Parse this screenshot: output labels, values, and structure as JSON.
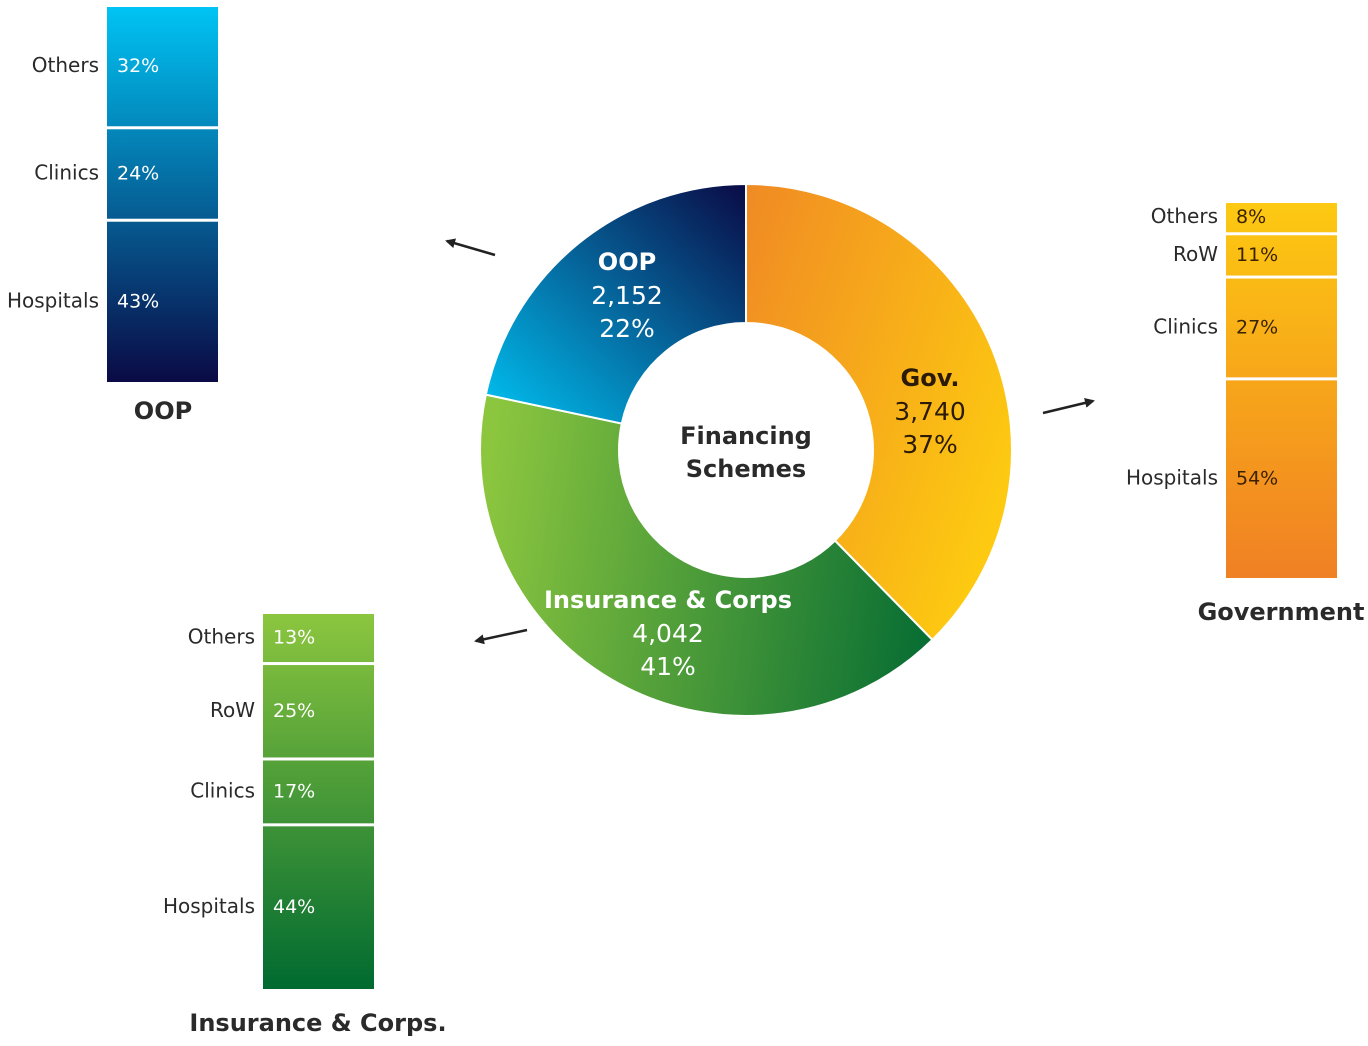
{
  "chart_data": [
    {
      "type": "pie",
      "donut": true,
      "center_label": [
        "Financing",
        "Schemes"
      ],
      "slices": [
        {
          "label": "Gov.",
          "value": 3740,
          "value_label": "3,740",
          "percent": "37%",
          "colors": [
            "#f08a24",
            "#fdc911"
          ]
        },
        {
          "label": "Insurance & Corps",
          "value": 4042,
          "value_label": "4,042",
          "percent": "41%",
          "colors": [
            "#8cc63f",
            "#0a6f33"
          ]
        },
        {
          "label": "OOP",
          "value": 2152,
          "value_label": "2,152",
          "percent": "22%",
          "colors": [
            "#00c4f4",
            "#0a0a45"
          ]
        }
      ]
    },
    {
      "type": "bar",
      "stacked": true,
      "title": "OOP",
      "categories": [
        "Others",
        "Clinics",
        "Hospitals"
      ],
      "values": [
        32,
        24,
        43
      ],
      "value_labels": [
        "32%",
        "24%",
        "43%"
      ],
      "colors": [
        "#00c4f4",
        "#0a0a45"
      ]
    },
    {
      "type": "bar",
      "stacked": true,
      "title": "Government",
      "categories": [
        "Others",
        "RoW",
        "Clinics",
        "Hospitals"
      ],
      "values": [
        8,
        11,
        27,
        54
      ],
      "value_labels": [
        "8%",
        "11%",
        "27%",
        "54%"
      ],
      "colors": [
        "#fdc911",
        "#f08024"
      ]
    },
    {
      "type": "bar",
      "stacked": true,
      "title": "Insurance & Corps.",
      "categories": [
        "Others",
        "RoW",
        "Clinics",
        "Hospitals"
      ],
      "values": [
        13,
        25,
        17,
        44
      ],
      "value_labels": [
        "13%",
        "25%",
        "17%",
        "44%"
      ],
      "colors": [
        "#8cc63f",
        "#006a30"
      ]
    }
  ]
}
